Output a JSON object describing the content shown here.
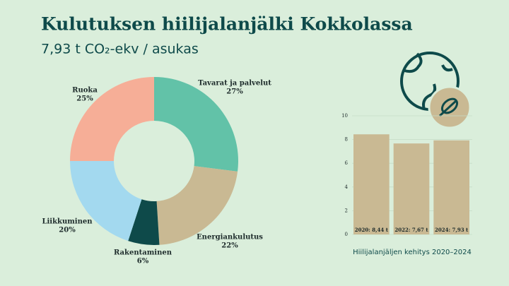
{
  "chart_data": [
    {
      "type": "donut",
      "title": "Kulutuksen hiilijalanjälki Kokkolassa",
      "subtitle": "7,93 t CO₂-ekv / asukas",
      "categories": [
        "Tavarat ja palvelut",
        "Energiankulutus",
        "Rakentaminen",
        "Liikkuminen",
        "Ruoka"
      ],
      "values": [
        27,
        22,
        6,
        20,
        25
      ],
      "value_labels": [
        "27%",
        "22%",
        "6%",
        "20%",
        "25%"
      ],
      "colors": [
        "#62c2a8",
        "#c9b993",
        "#0e4a4a",
        "#a3d9ef",
        "#f6ae97"
      ]
    },
    {
      "type": "bar",
      "xlabel": "Hiilijalanjäljen kehitys 2020–2024",
      "categories": [
        "2020: 8,44 t",
        "2022: 7,67 t",
        "2024: 7,93 t"
      ],
      "values": [
        8.44,
        7.67,
        7.93
      ],
      "color": "#c9b993",
      "ylim": [
        0,
        10
      ],
      "yticks": [
        0,
        2,
        4,
        6,
        8,
        10
      ],
      "grid": true
    }
  ]
}
